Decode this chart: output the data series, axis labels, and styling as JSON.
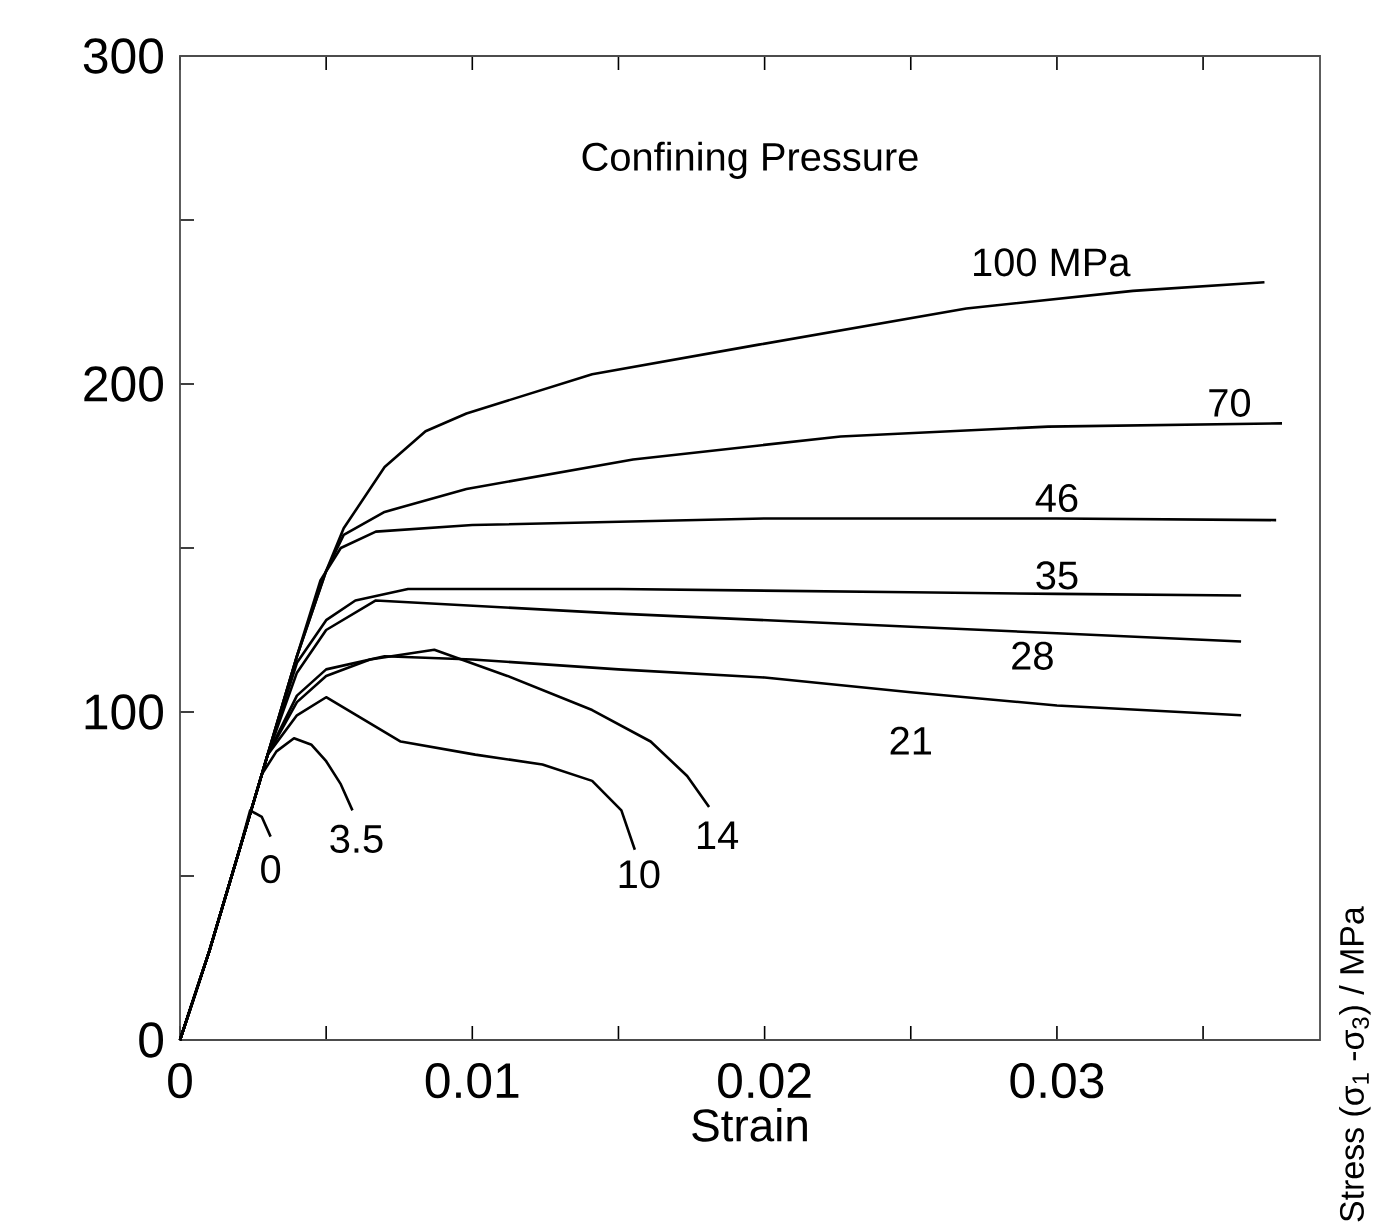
{
  "chart_data": {
    "type": "line",
    "xlabel": "Strain",
    "ylabel": "Stress (σ$_{1}$ -σ$_{3}$) / MPa",
    "annotations": [
      "Confining Pressure"
    ],
    "xlim": [
      0,
      0.039
    ],
    "ylim": [
      0,
      300
    ],
    "xticks": [
      0,
      {
        "value": 0.005,
        "label": null
      },
      0.01,
      {
        "value": 0.015,
        "label": null
      },
      0.02,
      {
        "value": 0.025,
        "label": null
      },
      0.03,
      {
        "value": 0.035,
        "label": null
      }
    ],
    "yticks": [
      0,
      {
        "value": 50,
        "label": null
      },
      100,
      {
        "value": 150,
        "label": null
      },
      200,
      {
        "value": 250,
        "label": null
      },
      300
    ],
    "grid": false,
    "marker": "none",
    "line_style": "solid",
    "series": [
      {
        "name": "100 MPa",
        "color": "#000000",
        "x": [
          0,
          0.001,
          0.002,
          0.003,
          0.004,
          0.005,
          0.0056,
          0.007,
          0.0084,
          0.0098,
          0.0141,
          0.0198,
          0.0269,
          0.0326,
          0.0371
        ],
        "values": [
          0,
          27,
          57,
          87,
          117,
          143,
          156,
          174.7,
          185.6,
          191,
          203,
          212,
          223,
          228.4,
          231
        ]
      },
      {
        "name": "70",
        "color": "#000000",
        "x": [
          0,
          0.001,
          0.002,
          0.003,
          0.004,
          0.005,
          0.0056,
          0.007,
          0.0098,
          0.0155,
          0.0226,
          0.0297,
          0.0377
        ],
        "values": [
          0,
          27,
          57,
          87,
          117,
          143,
          154,
          161,
          168,
          177,
          184,
          187,
          188
        ]
      },
      {
        "name": "46",
        "color": "#000000",
        "x": [
          0,
          0.001,
          0.002,
          0.003,
          0.004,
          0.0048,
          0.0055,
          0.0067,
          0.01,
          0.015,
          0.02,
          0.03,
          0.0375
        ],
        "values": [
          0,
          27,
          57,
          87,
          117,
          140,
          150,
          155,
          157,
          158,
          159,
          159,
          158.5
        ]
      },
      {
        "name": "35",
        "color": "#000000",
        "x": [
          0,
          0.001,
          0.002,
          0.003,
          0.004,
          0.005,
          0.006,
          0.0078,
          0.015,
          0.025,
          0.03,
          0.0363
        ],
        "values": [
          0,
          27,
          57,
          87,
          115,
          128,
          134,
          137.5,
          137.5,
          136.5,
          136,
          135.5
        ]
      },
      {
        "name": "28",
        "color": "#000000",
        "x": [
          0,
          0.001,
          0.002,
          0.003,
          0.004,
          0.005,
          0.0067,
          0.015,
          0.025,
          0.03,
          0.0363
        ],
        "values": [
          0,
          27,
          57,
          87,
          112,
          125,
          134,
          130,
          126,
          124,
          121.5
        ]
      },
      {
        "name": "21",
        "color": "#000000",
        "x": [
          0,
          0.001,
          0.002,
          0.003,
          0.004,
          0.005,
          0.007,
          0.01,
          0.015,
          0.02,
          0.025,
          0.03,
          0.0363
        ],
        "values": [
          0,
          27,
          57,
          87,
          105,
          113,
          117,
          116,
          113,
          110.5,
          106,
          102,
          99
        ]
      },
      {
        "name": "14",
        "color": "#000000",
        "x": [
          0,
          0.001,
          0.002,
          0.003,
          0.004,
          0.005,
          0.0065,
          0.0087,
          0.0112,
          0.0141,
          0.0161,
          0.01735,
          0.0181
        ],
        "values": [
          0,
          27,
          57,
          87,
          103,
          111,
          116,
          119,
          111,
          100.6,
          91,
          80.5,
          71
        ]
      },
      {
        "name": "10",
        "color": "#000000",
        "x": [
          0,
          0.001,
          0.002,
          0.003,
          0.004,
          0.005,
          0.00755,
          0.0101,
          0.0124,
          0.0141,
          0.0151,
          0.01556
        ],
        "values": [
          0,
          27,
          57,
          87,
          99,
          104.5,
          91,
          87,
          84,
          79,
          70,
          58
        ]
      },
      {
        "name": "3.5",
        "color": "#000000",
        "x": [
          0,
          0.001,
          0.002,
          0.0028,
          0.0033,
          0.0039,
          0.0045,
          0.005,
          0.0055,
          0.0059
        ],
        "values": [
          0,
          27,
          57,
          81,
          88,
          92,
          90,
          85,
          78,
          70
        ]
      },
      {
        "name": "0",
        "color": "#000000",
        "x": [
          0,
          0.001,
          0.002,
          0.0024,
          0.0028,
          0.0031
        ],
        "values": [
          0,
          27,
          57,
          70,
          68,
          62
        ]
      }
    ]
  }
}
